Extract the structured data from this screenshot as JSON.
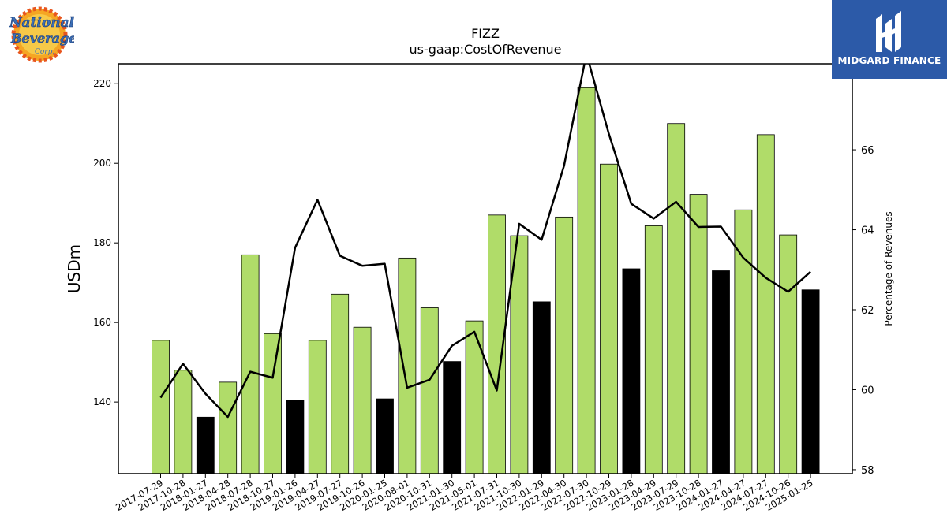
{
  "logos": {
    "left_brand_text": "National Beverage Corp.",
    "right_brand_text": "MIDGARD FINANCE"
  },
  "colors": {
    "bar_default": "#b0dc69",
    "bar_highlight": "#000000",
    "line": "#000000",
    "brand_panel": "#2c5aa8"
  },
  "chart_data": {
    "type": "bar",
    "title": "FIZZ",
    "subtitle": "us-gaap:CostOfRevenue",
    "ylabel": "USDm",
    "y2label": "Percentage of Revenues",
    "ylim": [
      122,
      225
    ],
    "y2lim": [
      57.9,
      68.15
    ],
    "yticks": [
      140,
      160,
      180,
      200,
      220
    ],
    "y2ticks": [
      58,
      60,
      62,
      64,
      66
    ],
    "grid": false,
    "categories": [
      "2017-07-29",
      "2017-10-28",
      "2018-01-27",
      "2018-04-28",
      "2018-07-28",
      "2018-10-27",
      "2019-01-26",
      "2019-04-27",
      "2019-07-27",
      "2019-10-26",
      "2020-01-25",
      "2020-08-01",
      "2020-10-31",
      "2021-01-30",
      "2021-05-01",
      "2021-07-31",
      "2021-10-30",
      "2022-01-29",
      "2022-04-30",
      "2022-07-30",
      "2022-10-29",
      "2023-01-28",
      "2023-04-29",
      "2023-07-29",
      "2023-10-28",
      "2024-01-27",
      "2024-04-27",
      "2024-07-27",
      "2024-10-26",
      "2025-01-25"
    ],
    "series": [
      {
        "kind": "bar",
        "axis": "left",
        "values": [
          155.5,
          148,
          136.2,
          145,
          177,
          157.2,
          140.4,
          155.5,
          167.1,
          158.8,
          140.8,
          176.2,
          163.7,
          150.2,
          160.4,
          187,
          181.8,
          165.2,
          186.5,
          219,
          199.8,
          173.5,
          184.3,
          210,
          192.2,
          173,
          188.3,
          207.2,
          182,
          168.2
        ],
        "highlight": [
          false,
          false,
          true,
          false,
          false,
          false,
          true,
          false,
          false,
          false,
          true,
          false,
          false,
          true,
          false,
          false,
          false,
          true,
          false,
          false,
          false,
          true,
          false,
          false,
          false,
          true,
          false,
          false,
          false,
          true
        ]
      },
      {
        "kind": "line",
        "axis": "right",
        "values": [
          59.8,
          60.65,
          59.9,
          59.32,
          60.45,
          60.3,
          63.55,
          64.75,
          63.35,
          63.1,
          63.15,
          60.05,
          60.25,
          61.1,
          61.45,
          59.98,
          64.15,
          63.75,
          65.6,
          68.4,
          66.4,
          64.65,
          64.28,
          64.7,
          64.07,
          64.08,
          63.3,
          62.8,
          62.45,
          62.95
        ]
      }
    ]
  }
}
